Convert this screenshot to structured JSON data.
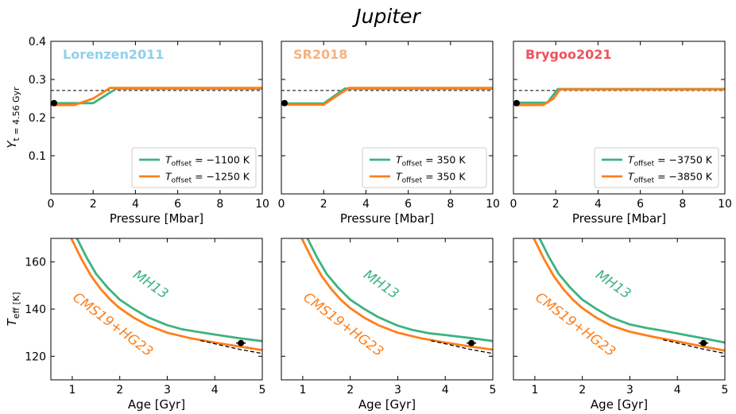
{
  "figure": {
    "title": "Jupiter",
    "colors": {
      "green": "#3db37f",
      "orange": "#ff7f1a",
      "black": "#000000",
      "label_lorenzen": "#8fd0ea",
      "label_sr": "#f7b27e",
      "label_brygoo": "#f0525b"
    }
  },
  "chart_data": [
    {
      "type": "line",
      "panel_label": "Lorenzen2011",
      "label_color": "#8fd0ea",
      "xlabel": "Pressure [Mbar]",
      "ylabel": "Y_{t = 4.56 Gyr}",
      "xlim": [
        0,
        10
      ],
      "ylim": [
        0,
        0.4
      ],
      "xticks": [
        0,
        2,
        4,
        6,
        8,
        10
      ],
      "xtick_labels": [
        "0",
        "2",
        "4",
        "6",
        "8",
        "10"
      ],
      "yticks": [
        0.1,
        0.2,
        0.3,
        0.4
      ],
      "ytick_labels": [
        "0.1",
        "0.2",
        "0.3",
        "0.4"
      ],
      "grid": false,
      "legend_position": "lower-right",
      "reference_line": 0.271,
      "marker": [
        {
          "x": 0.15,
          "y": 0.238
        }
      ],
      "series": [
        {
          "name": "T_offset = −1100 K",
          "legend_main": "T",
          "legend_sub": "offset",
          "legend_value": " = −1100 K",
          "color": "#3db37f",
          "x": [
            0,
            2.0,
            3.1,
            10
          ],
          "y": [
            0.238,
            0.238,
            0.276,
            0.276
          ]
        },
        {
          "name": "T_offset = −1250 K",
          "legend_main": "T",
          "legend_sub": "offset",
          "legend_value": " = −1250 K",
          "color": "#ff7f1a",
          "x": [
            0,
            1.1,
            2.0,
            2.8,
            10
          ],
          "y": [
            0.233,
            0.233,
            0.25,
            0.278,
            0.278
          ]
        }
      ]
    },
    {
      "type": "line",
      "panel_label": "SR2018",
      "label_color": "#f7b27e",
      "xlabel": "Pressure [Mbar]",
      "xlim": [
        0,
        10
      ],
      "ylim": [
        0,
        0.4
      ],
      "xticks": [
        0,
        2,
        4,
        6,
        8,
        10
      ],
      "xtick_labels": [
        "0",
        "2",
        "4",
        "6",
        "8",
        "10"
      ],
      "yticks": [
        0.1,
        0.2,
        0.3,
        0.4
      ],
      "grid": false,
      "legend_position": "lower-right",
      "reference_line": 0.271,
      "marker": [
        {
          "x": 0.15,
          "y": 0.238
        }
      ],
      "series": [
        {
          "name": "T_offset = 350 K",
          "legend_main": "T",
          "legend_sub": "offset",
          "legend_value": " = 350 K",
          "color": "#3db37f",
          "x": [
            0,
            2.0,
            3.0,
            10
          ],
          "y": [
            0.237,
            0.237,
            0.276,
            0.276
          ]
        },
        {
          "name": "T_offset = 350 K",
          "legend_main": "T",
          "legend_sub": "offset",
          "legend_value": " = 350 K",
          "color": "#ff7f1a",
          "x": [
            0,
            2.0,
            3.2,
            10
          ],
          "y": [
            0.234,
            0.234,
            0.278,
            0.278
          ]
        }
      ]
    },
    {
      "type": "line",
      "panel_label": "Brygoo2021",
      "label_color": "#f0525b",
      "xlabel": "Pressure [Mbar]",
      "xlim": [
        0,
        10
      ],
      "ylim": [
        0,
        0.4
      ],
      "xticks": [
        0,
        2,
        4,
        6,
        8,
        10
      ],
      "xtick_labels": [
        "0",
        "2",
        "4",
        "6",
        "8",
        "10"
      ],
      "yticks": [
        0.1,
        0.2,
        0.3,
        0.4
      ],
      "grid": false,
      "legend_position": "lower-right",
      "reference_line": 0.271,
      "marker": [
        {
          "x": 0.15,
          "y": 0.238
        }
      ],
      "series": [
        {
          "name": "T_offset = −3750 K",
          "legend_main": "T",
          "legend_sub": "offset",
          "legend_value": " = −3750 K",
          "color": "#3db37f",
          "x": [
            0,
            1.6,
            2.1,
            10
          ],
          "y": [
            0.239,
            0.239,
            0.275,
            0.275
          ]
        },
        {
          "name": "T_offset = −3850 K",
          "legend_main": "T",
          "legend_sub": "offset",
          "legend_value": " = −3850 K",
          "color": "#ff7f1a",
          "x": [
            0,
            1.4,
            1.9,
            2.2,
            10
          ],
          "y": [
            0.233,
            0.233,
            0.25,
            0.274,
            0.274
          ]
        }
      ]
    },
    {
      "type": "line",
      "xlabel": "Age [Gyr]",
      "ylabel": "T_eff [K]",
      "xlim": [
        0.55,
        5
      ],
      "ylim": [
        110,
        170
      ],
      "xticks": [
        1,
        2,
        3,
        4,
        5
      ],
      "xtick_labels": [
        "1",
        "2",
        "3",
        "4",
        "5"
      ],
      "yticks": [
        120,
        140,
        160
      ],
      "ytick_labels": [
        "120",
        "140",
        "160"
      ],
      "grid": false,
      "annotations": [
        {
          "text": "MH13",
          "x": 2.6,
          "y": 149,
          "rotate": 35,
          "color": "#3db37f"
        },
        {
          "text": "CMS19+HG23",
          "x": 1.8,
          "y": 132,
          "rotate": 37,
          "color": "#ff7f1a"
        }
      ],
      "marker": [
        {
          "x": 4.55,
          "y": 125.6
        }
      ],
      "series": [
        {
          "name": "MH13",
          "color": "#3db37f",
          "dash": false,
          "x": [
            1.1,
            1.3,
            1.5,
            1.75,
            2.0,
            2.3,
            2.6,
            3.0,
            3.3,
            3.5,
            4.0,
            4.5,
            5.0
          ],
          "y": [
            170,
            162,
            155,
            149,
            144,
            140,
            136.5,
            133.2,
            131.5,
            130.8,
            129.2,
            127.7,
            126.4
          ]
        },
        {
          "name": "CMS19+HG23",
          "color": "#ff7f1a",
          "dash": false,
          "x": [
            0.98,
            1.2,
            1.4,
            1.6,
            1.8,
            2.0,
            2.3,
            2.6,
            3.0,
            3.5,
            4.0,
            4.5,
            5.0
          ],
          "y": [
            170,
            161,
            154,
            148.5,
            144,
            140.4,
            136.3,
            133.1,
            130.0,
            127.6,
            125.8,
            124.2,
            122.6
          ]
        },
        {
          "name": "",
          "color": "#000000",
          "dash": true,
          "x": [
            3.7,
            4.0,
            4.5,
            5.0
          ],
          "y": [
            126.7,
            125.3,
            123.0,
            121.2
          ]
        }
      ]
    },
    {
      "type": "line",
      "xlabel": "Age [Gyr]",
      "xlim": [
        0.55,
        5
      ],
      "ylim": [
        110,
        170
      ],
      "xticks": [
        1,
        2,
        3,
        4,
        5
      ],
      "xtick_labels": [
        "1",
        "2",
        "3",
        "4",
        "5"
      ],
      "yticks": [
        120,
        140,
        160
      ],
      "grid": false,
      "annotations": [
        {
          "text": "MH13",
          "x": 2.6,
          "y": 149,
          "rotate": 35,
          "color": "#3db37f"
        },
        {
          "text": "CMS19+HG23",
          "x": 1.8,
          "y": 132,
          "rotate": 37,
          "color": "#ff7f1a"
        }
      ],
      "marker": [
        {
          "x": 4.55,
          "y": 125.6
        }
      ],
      "series": [
        {
          "name": "MH13",
          "color": "#3db37f",
          "dash": false,
          "x": [
            1.1,
            1.3,
            1.5,
            1.75,
            2.0,
            2.3,
            2.6,
            3.0,
            3.3,
            3.65,
            4.0,
            4.5,
            5.0
          ],
          "y": [
            170,
            162,
            155,
            149,
            144,
            140,
            136.5,
            133.0,
            131.2,
            129.8,
            129.0,
            127.8,
            126.5
          ]
        },
        {
          "name": "CMS19+HG23",
          "color": "#ff7f1a",
          "dash": false,
          "x": [
            0.98,
            1.2,
            1.4,
            1.6,
            1.8,
            2.0,
            2.3,
            2.6,
            3.0,
            3.5,
            4.0,
            4.5,
            5.0
          ],
          "y": [
            170,
            161,
            154,
            148.5,
            144,
            140.4,
            136.3,
            133.1,
            130.0,
            127.6,
            125.8,
            124.2,
            122.8
          ]
        },
        {
          "name": "",
          "color": "#000000",
          "dash": true,
          "x": [
            3.7,
            4.0,
            4.5,
            5.0
          ],
          "y": [
            126.6,
            125.3,
            123.0,
            121.2
          ]
        }
      ]
    },
    {
      "type": "line",
      "xlabel": "Age [Gyr]",
      "xlim": [
        0.55,
        5
      ],
      "ylim": [
        110,
        170
      ],
      "xticks": [
        1,
        2,
        3,
        4,
        5
      ],
      "xtick_labels": [
        "1",
        "2",
        "3",
        "4",
        "5"
      ],
      "yticks": [
        120,
        140,
        160
      ],
      "grid": false,
      "annotations": [
        {
          "text": "MH13",
          "x": 2.6,
          "y": 149,
          "rotate": 35,
          "color": "#3db37f"
        },
        {
          "text": "CMS19+HG23",
          "x": 1.8,
          "y": 132,
          "rotate": 37,
          "color": "#ff7f1a"
        }
      ],
      "marker": [
        {
          "x": 4.55,
          "y": 125.6
        }
      ],
      "series": [
        {
          "name": "MH13",
          "color": "#3db37f",
          "dash": false,
          "x": [
            1.1,
            1.3,
            1.5,
            1.75,
            2.0,
            2.3,
            2.6,
            3.0,
            3.35,
            3.7,
            4.0,
            4.5,
            5.0
          ],
          "y": [
            170,
            162,
            155,
            149,
            144,
            140,
            136.5,
            133.5,
            132.0,
            130.8,
            129.7,
            127.8,
            125.8
          ]
        },
        {
          "name": "CMS19+HG23",
          "color": "#ff7f1a",
          "dash": false,
          "x": [
            0.98,
            1.2,
            1.4,
            1.6,
            1.8,
            2.0,
            2.3,
            2.6,
            3.0,
            3.5,
            4.0,
            4.5,
            5.0
          ],
          "y": [
            170,
            161,
            154,
            148.5,
            144,
            140.4,
            136.3,
            133.1,
            130.4,
            128.2,
            126.3,
            124.3,
            122.4
          ]
        },
        {
          "name": "",
          "color": "#000000",
          "dash": true,
          "x": [
            3.7,
            4.0,
            4.5,
            5.0
          ],
          "y": [
            127.0,
            125.6,
            123.2,
            121.2
          ]
        }
      ]
    }
  ]
}
